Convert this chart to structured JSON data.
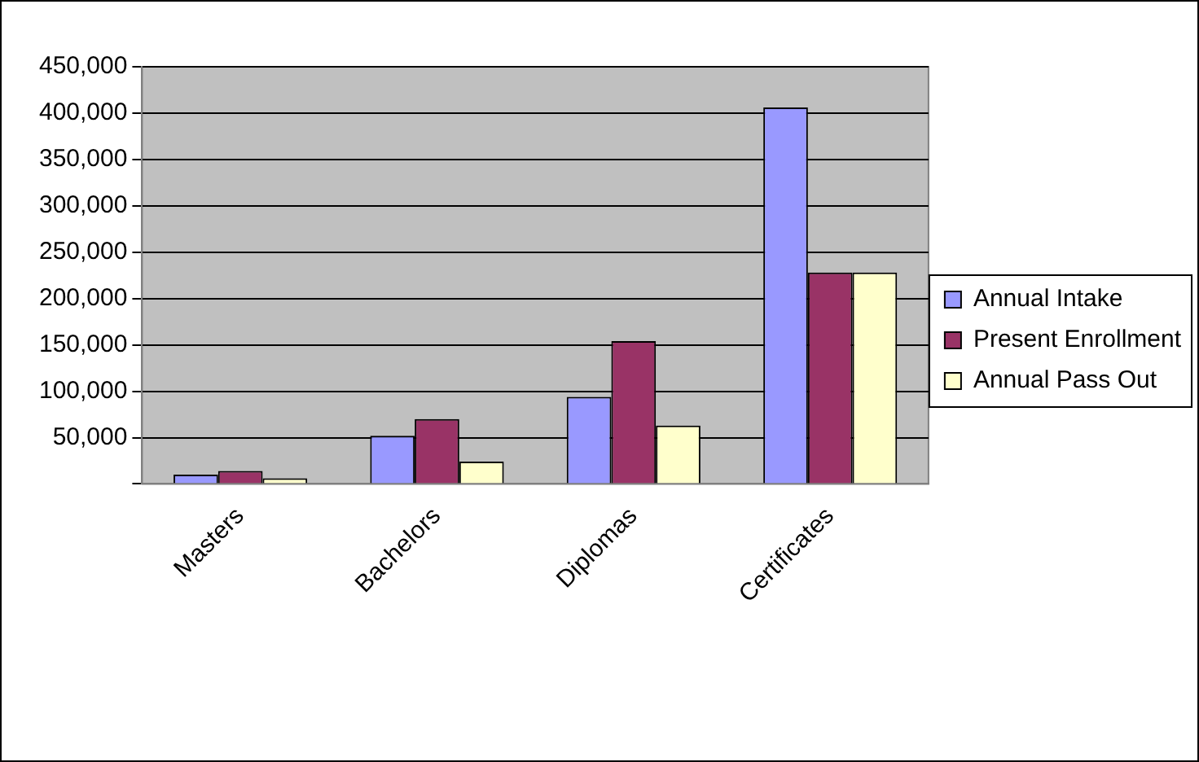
{
  "chart_data": {
    "type": "bar",
    "categories": [
      "Masters",
      "Bachelors",
      "Diplomas",
      "Certificates"
    ],
    "series": [
      {
        "name": "Annual Intake",
        "color": "#9999ff",
        "values": [
          10000,
          52000,
          94000,
          406000
        ]
      },
      {
        "name": "Present Enrollment",
        "color": "#993366",
        "values": [
          14000,
          70000,
          154000,
          228000
        ]
      },
      {
        "name": "Annual Pass Out",
        "color": "#ffffcc",
        "values": [
          6000,
          24000,
          63000,
          228000
        ]
      }
    ],
    "ylim": [
      0,
      450000
    ],
    "yticks": [
      {
        "value": 0,
        "label": null
      },
      {
        "value": 50000,
        "label": "50,000"
      },
      {
        "value": 100000,
        "label": "100,000"
      },
      {
        "value": 150000,
        "label": "150,000"
      },
      {
        "value": 200000,
        "label": "200,000"
      },
      {
        "value": 250000,
        "label": "250,000"
      },
      {
        "value": 300000,
        "label": "300,000"
      },
      {
        "value": 350000,
        "label": "350,000"
      },
      {
        "value": 400000,
        "label": "400,000"
      },
      {
        "value": 450000,
        "label": "450,000"
      }
    ],
    "grid": "y",
    "legend": "right"
  }
}
